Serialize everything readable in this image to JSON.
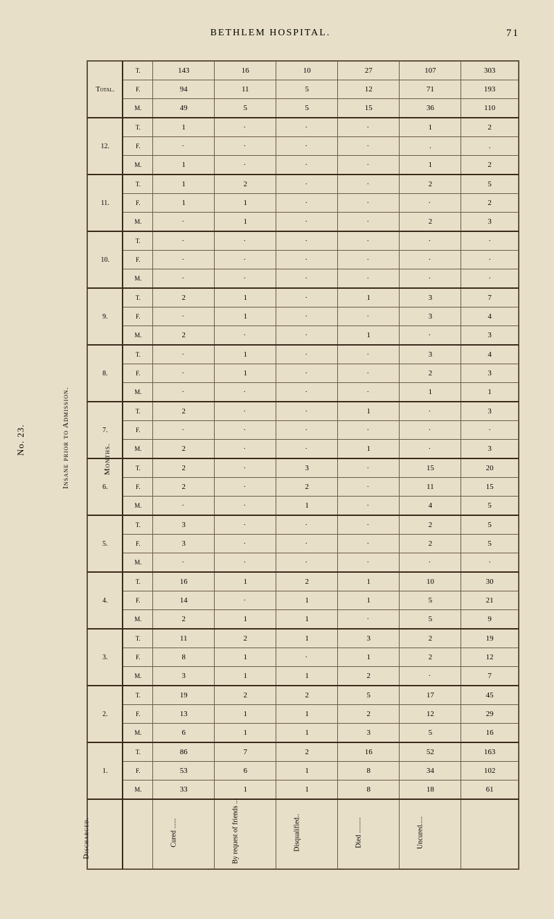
{
  "header": {
    "title": "BETHLEM HOSPITAL.",
    "page_number": "71"
  },
  "side_labels": {
    "number": "No. 23.",
    "title": "Insane prior to Admission.",
    "months": "Months.",
    "discharged": "Discharged."
  },
  "row_groups": [
    {
      "label": "Total.",
      "rows": [
        {
          "sub": "T.",
          "cells": [
            "143",
            "16",
            "10",
            "27",
            "107"
          ],
          "total": "303"
        },
        {
          "sub": "F.",
          "cells": [
            "94",
            "11",
            "5",
            "12",
            "71"
          ],
          "total": "193"
        },
        {
          "sub": "M.",
          "cells": [
            "49",
            "5",
            "5",
            "15",
            "36"
          ],
          "total": "110"
        }
      ]
    },
    {
      "label": "12.",
      "rows": [
        {
          "sub": "T.",
          "cells": [
            "1",
            ":",
            ":",
            ":",
            "1"
          ],
          "total": "2"
        },
        {
          "sub": "F.",
          "cells": [
            ":",
            ":",
            ":",
            ":",
            "."
          ],
          "total": "."
        },
        {
          "sub": "M.",
          "cells": [
            "1",
            ":",
            ":",
            ":",
            "1"
          ],
          "total": "2"
        }
      ]
    },
    {
      "label": "11.",
      "rows": [
        {
          "sub": "T.",
          "cells": [
            "1",
            "2",
            ":",
            ":",
            "2"
          ],
          "total": "5"
        },
        {
          "sub": "F.",
          "cells": [
            "1",
            "1",
            ":",
            ":",
            ":"
          ],
          "total": "2"
        },
        {
          "sub": "M.",
          "cells": [
            ":",
            "1",
            ":",
            ":",
            "2"
          ],
          "total": "3"
        }
      ]
    },
    {
      "label": "10.",
      "rows": [
        {
          "sub": "T.",
          "cells": [
            ":",
            ":",
            ":",
            ":",
            ":"
          ],
          "total": ":"
        },
        {
          "sub": "F.",
          "cells": [
            ":",
            ":",
            ":",
            ":",
            ":"
          ],
          "total": ":"
        },
        {
          "sub": "M.",
          "cells": [
            ":",
            ":",
            ":",
            ":",
            ":"
          ],
          "total": ":"
        }
      ]
    },
    {
      "label": "9.",
      "rows": [
        {
          "sub": "T.",
          "cells": [
            "2",
            "1",
            ":",
            "1",
            "3"
          ],
          "total": "7"
        },
        {
          "sub": "F.",
          "cells": [
            ":",
            "1",
            ":",
            ":",
            "3"
          ],
          "total": "4"
        },
        {
          "sub": "M.",
          "cells": [
            "2",
            ":",
            ":",
            "1",
            ":"
          ],
          "total": "3"
        }
      ]
    },
    {
      "label": "8.",
      "rows": [
        {
          "sub": "T.",
          "cells": [
            ":",
            "1",
            ":",
            ":",
            "3"
          ],
          "total": "4"
        },
        {
          "sub": "F.",
          "cells": [
            ":",
            "1",
            ":",
            ":",
            "2"
          ],
          "total": "3"
        },
        {
          "sub": "M.",
          "cells": [
            ":",
            ":",
            ":",
            ":",
            "1"
          ],
          "total": "1"
        }
      ]
    },
    {
      "label": "7.",
      "rows": [
        {
          "sub": "T.",
          "cells": [
            "2",
            ":",
            ":",
            "1",
            ":"
          ],
          "total": "3"
        },
        {
          "sub": "F.",
          "cells": [
            ":",
            ":",
            ":",
            ":",
            ":"
          ],
          "total": ":"
        },
        {
          "sub": "M.",
          "cells": [
            "2",
            ":",
            ":",
            "1",
            ":"
          ],
          "total": "3"
        }
      ]
    },
    {
      "label": "6.",
      "rows": [
        {
          "sub": "T.",
          "cells": [
            "2",
            ":",
            "3",
            ":",
            "15"
          ],
          "total": "20"
        },
        {
          "sub": "F.",
          "cells": [
            "2",
            ":",
            "2",
            ":",
            "11"
          ],
          "total": "15"
        },
        {
          "sub": "M.",
          "cells": [
            ":",
            ":",
            "1",
            ":",
            "4"
          ],
          "total": "5"
        }
      ]
    },
    {
      "label": "5.",
      "rows": [
        {
          "sub": "T.",
          "cells": [
            "3",
            ":",
            ":",
            ":",
            "2"
          ],
          "total": "5"
        },
        {
          "sub": "F.",
          "cells": [
            "3",
            ":",
            ":",
            ":",
            "2"
          ],
          "total": "5"
        },
        {
          "sub": "M.",
          "cells": [
            ":",
            ":",
            ":",
            ":",
            ":"
          ],
          "total": ":"
        }
      ]
    },
    {
      "label": "4.",
      "rows": [
        {
          "sub": "T.",
          "cells": [
            "16",
            "1",
            "2",
            "1",
            "10"
          ],
          "total": "30"
        },
        {
          "sub": "F.",
          "cells": [
            "14",
            ":",
            "1",
            "1",
            "5"
          ],
          "total": "21"
        },
        {
          "sub": "M.",
          "cells": [
            "2",
            "1",
            "1",
            ":",
            "5"
          ],
          "total": "9"
        }
      ]
    },
    {
      "label": "3.",
      "rows": [
        {
          "sub": "T.",
          "cells": [
            "11",
            "2",
            "1",
            "3",
            "2"
          ],
          "total": "19"
        },
        {
          "sub": "F.",
          "cells": [
            "8",
            "1",
            ":",
            "1",
            "2"
          ],
          "total": "12"
        },
        {
          "sub": "M.",
          "cells": [
            "3",
            "1",
            "1",
            "2",
            ":"
          ],
          "total": "7"
        }
      ]
    },
    {
      "label": "2.",
      "rows": [
        {
          "sub": "T.",
          "cells": [
            "19",
            "2",
            "2",
            "5",
            "17"
          ],
          "total": "45"
        },
        {
          "sub": "F.",
          "cells": [
            "13",
            "1",
            "1",
            "2",
            "12"
          ],
          "total": "29"
        },
        {
          "sub": "M.",
          "cells": [
            "6",
            "1",
            "1",
            "3",
            "5"
          ],
          "total": "16"
        }
      ]
    },
    {
      "label": "1.",
      "rows": [
        {
          "sub": "T.",
          "cells": [
            "86",
            "7",
            "2",
            "16",
            "52"
          ],
          "total": "163"
        },
        {
          "sub": "F.",
          "cells": [
            "53",
            "6",
            "1",
            "8",
            "34"
          ],
          "total": "102"
        },
        {
          "sub": "M.",
          "cells": [
            "33",
            "1",
            "1",
            "8",
            "18"
          ],
          "total": "61"
        }
      ]
    }
  ],
  "categories": [
    "Cured ......",
    "By request of friends ...",
    "Disqualified..",
    "Died .........",
    "Uncured....."
  ],
  "styling": {
    "background_color": "#e8dfc8",
    "border_color": "#6a5a4a",
    "thick_border_color": "#3a2a1a",
    "font_family": "Georgia, serif",
    "base_font_size": 11,
    "header_font_size": 14
  }
}
